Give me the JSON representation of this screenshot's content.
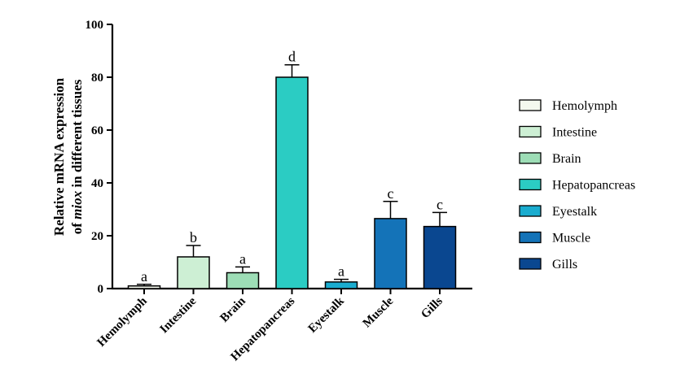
{
  "chart_data": {
    "type": "bar",
    "ylabel_line1": "Relative mRNA expression",
    "ylabel_line2_prefix": "of ",
    "ylabel_line2_italic": "miox",
    "ylabel_line2_suffix": " in different tissues",
    "ylim": [
      0,
      100
    ],
    "yticks": [
      0,
      20,
      40,
      60,
      80,
      100
    ],
    "categories": [
      "Hemolymph",
      "Intestine",
      "Brain",
      "Hepatopancreas",
      "Eyestalk",
      "Muscle",
      "Gills"
    ],
    "values": [
      1.0,
      12.0,
      6.0,
      80.0,
      2.5,
      26.5,
      23.5
    ],
    "errors": [
      0.6,
      4.3,
      2.2,
      4.7,
      1.0,
      6.5,
      5.3
    ],
    "significance": [
      "a",
      "b",
      "a",
      "d",
      "a",
      "c",
      "c"
    ],
    "colors": [
      "#F4F9EE",
      "#CDEFD4",
      "#9DDDB6",
      "#2BCCC3",
      "#1AACCF",
      "#1473B8",
      "#0A4790"
    ],
    "legend": {
      "placement": "right",
      "entries": [
        "Hemolymph",
        "Intestine",
        "Brain",
        "Hepatopancreas",
        "Eyestalk",
        "Muscle",
        "Gills"
      ]
    },
    "grid": false
  }
}
